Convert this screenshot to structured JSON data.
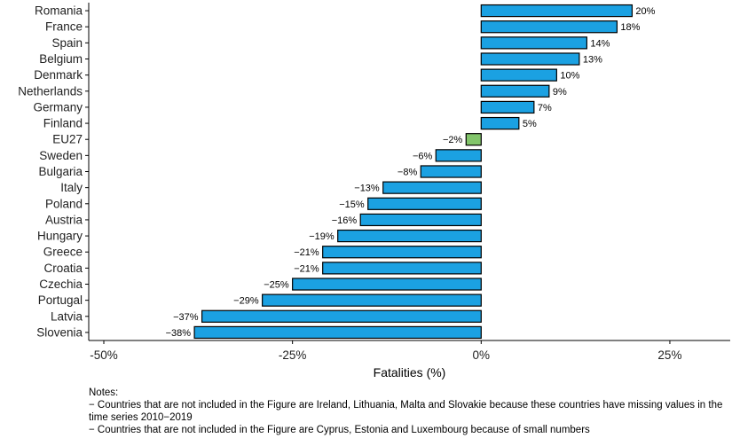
{
  "chart_data": {
    "type": "bar",
    "orientation": "horizontal",
    "categories": [
      "Romania",
      "France",
      "Spain",
      "Belgium",
      "Denmark",
      "Netherlands",
      "Germany",
      "Finland",
      "EU27",
      "Sweden",
      "Bulgaria",
      "Italy",
      "Poland",
      "Austria",
      "Hungary",
      "Greece",
      "Croatia",
      "Czechia",
      "Portugal",
      "Latvia",
      "Slovenia"
    ],
    "values": [
      20,
      18,
      14,
      13,
      10,
      9,
      7,
      5,
      -2,
      -6,
      -8,
      -13,
      -15,
      -16,
      -19,
      -21,
      -21,
      -25,
      -29,
      -37,
      -38
    ],
    "value_labels": [
      "20%",
      "18%",
      "14%",
      "13%",
      "10%",
      "9%",
      "7%",
      "5%",
      "−2%",
      "−6%",
      "−8%",
      "−13%",
      "−15%",
      "−16%",
      "−19%",
      "−21%",
      "−21%",
      "−25%",
      "−29%",
      "−37%",
      "−38%"
    ],
    "xlabel": "Fatalities (%)",
    "ylabel": "",
    "xlim": [
      -52,
      33
    ],
    "xticks": [
      -50,
      -25,
      0,
      25
    ],
    "xtick_labels": [
      "-50%",
      "-25%",
      "0%",
      "25%"
    ],
    "grid": false,
    "colors": {
      "bar": "#1ba1e2",
      "highlight": "#82c56b",
      "highlight_category": "EU27",
      "stroke": "#000000"
    }
  },
  "notes": {
    "heading": "Notes:",
    "lines": [
      "− Countries that are not included in the Figure are Ireland, Lithuania, Malta and Slovakie because these countries have missing values in the time series 2010−2019",
      "− Countries that are not included in the Figure are Cyprus, Estonia and Luxembourg because of small numbers"
    ]
  }
}
